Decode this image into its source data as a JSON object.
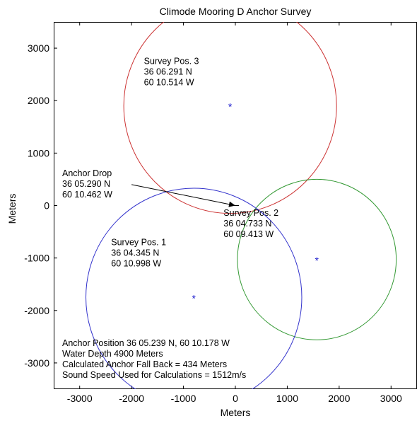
{
  "chart_data": {
    "type": "scatter",
    "title": "Climode Mooring D Anchor Survey",
    "xlabel": "Meters",
    "ylabel": "Meters",
    "xlim": [
      -3500,
      3500
    ],
    "ylim": [
      -3500,
      3500
    ],
    "xticks": [
      -3000,
      -2000,
      -1000,
      0,
      1000,
      2000,
      3000
    ],
    "yticks": [
      -3000,
      -2000,
      -1000,
      0,
      1000,
      2000,
      3000
    ],
    "xtick_labels": [
      "-3000",
      "-2000",
      "-1000",
      "0",
      "1000",
      "2000",
      "3000"
    ],
    "ytick_labels": [
      "3000",
      "2000",
      "1000",
      "0",
      "-1000",
      "-2000",
      "-3000"
    ],
    "grid": false,
    "series": [
      {
        "color": "#cc3333",
        "center": [
          -100,
          1900
        ],
        "radius": 2050,
        "marker": "*",
        "labels": [
          "Survey Pos. 3",
          "36 06.291 N",
          "60 10.514 W"
        ]
      },
      {
        "color": "#339933",
        "center": [
          1570,
          -1030
        ],
        "radius": 1530,
        "marker": "*",
        "labels": [
          "Survey Pos. 2",
          "36 04.733 N",
          "60 09.413 W"
        ]
      },
      {
        "color": "#3333cc",
        "center": [
          -800,
          -1750
        ],
        "radius": 2080,
        "marker": "*",
        "labels": [
          "Survey Pos. 1",
          "36 04.345 N",
          "60 10.998 W"
        ]
      }
    ],
    "anchor_drop": {
      "labels": [
        "Anchor Drop",
        "36 05.290 N",
        "60 10.462 W"
      ],
      "arrow_from": [
        -2000,
        400
      ],
      "arrow_to": [
        0,
        0
      ],
      "color": "#000000"
    },
    "footer_notes": [
      "Anchor Position 36 05.239 N, 60 10.178 W",
      "Water Depth 4900 Meters",
      "Calculated Anchor Fall Back = 434 Meters",
      "Sound Speed Used for Calculations = 1512m/s"
    ]
  }
}
